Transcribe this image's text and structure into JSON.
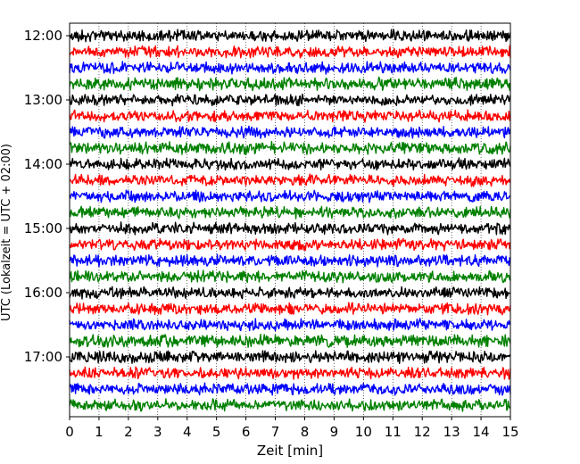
{
  "chart_data": {
    "type": "line",
    "title": "",
    "xlabel": "Zeit  [min]",
    "ylabel": "UTC (Lokalzeit = UTC + 02:00)",
    "xlim": [
      0,
      15
    ],
    "x_ticks": [
      0,
      1,
      2,
      3,
      4,
      5,
      6,
      7,
      8,
      9,
      10,
      11,
      12,
      13,
      14,
      15
    ],
    "y_ticks": [
      {
        "label": "12:00",
        "row": 0
      },
      {
        "label": "13:00",
        "row": 4
      },
      {
        "label": "14:00",
        "row": 8
      },
      {
        "label": "15:00",
        "row": 12
      },
      {
        "label": "16:00",
        "row": 16
      },
      {
        "label": "17:00",
        "row": 20
      }
    ],
    "grid": {
      "x": true,
      "style": "dotted"
    },
    "legend": "none",
    "series": [
      {
        "start": "12:00",
        "color": "#000000",
        "amplitude": 0.25
      },
      {
        "start": "12:15",
        "color": "#ff0000",
        "amplitude": 0.25
      },
      {
        "start": "12:30",
        "color": "#0000ff",
        "amplitude": 0.25
      },
      {
        "start": "12:45",
        "color": "#008000",
        "amplitude": 0.28
      },
      {
        "start": "13:00",
        "color": "#000000",
        "amplitude": 0.25
      },
      {
        "start": "13:15",
        "color": "#ff0000",
        "amplitude": 0.25
      },
      {
        "start": "13:30",
        "color": "#0000ff",
        "amplitude": 0.25
      },
      {
        "start": "13:45",
        "color": "#008000",
        "amplitude": 0.27
      },
      {
        "start": "14:00",
        "color": "#000000",
        "amplitude": 0.25
      },
      {
        "start": "14:15",
        "color": "#ff0000",
        "amplitude": 0.25
      },
      {
        "start": "14:30",
        "color": "#0000ff",
        "amplitude": 0.25
      },
      {
        "start": "14:45",
        "color": "#008000",
        "amplitude": 0.25
      },
      {
        "start": "15:00",
        "color": "#000000",
        "amplitude": 0.25
      },
      {
        "start": "15:15",
        "color": "#ff0000",
        "amplitude": 0.25
      },
      {
        "start": "15:30",
        "color": "#0000ff",
        "amplitude": 0.25
      },
      {
        "start": "15:45",
        "color": "#008000",
        "amplitude": 0.25
      },
      {
        "start": "16:00",
        "color": "#000000",
        "amplitude": 0.25
      },
      {
        "start": "16:15",
        "color": "#ff0000",
        "amplitude": 0.25
      },
      {
        "start": "16:30",
        "color": "#0000ff",
        "amplitude": 0.25
      },
      {
        "start": "16:45",
        "color": "#008000",
        "amplitude": 0.27
      },
      {
        "start": "17:00",
        "color": "#000000",
        "amplitude": 0.26
      },
      {
        "start": "17:15",
        "color": "#ff0000",
        "amplitude": 0.25
      },
      {
        "start": "17:30",
        "color": "#0000ff",
        "amplitude": 0.25
      },
      {
        "start": "17:45",
        "color": "#008000",
        "amplitude": 0.25
      }
    ]
  }
}
